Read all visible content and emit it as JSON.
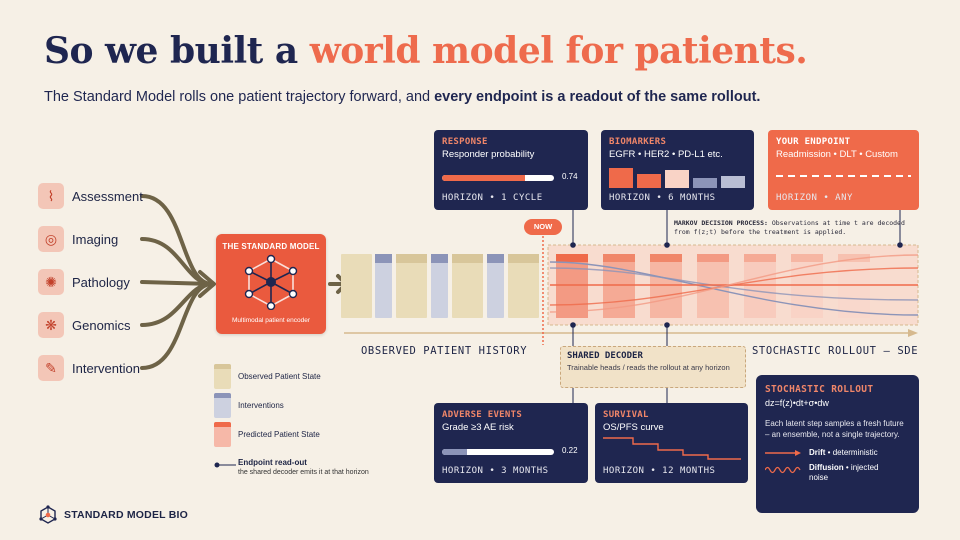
{
  "title": {
    "part1": "So we built a ",
    "accent": "world model for patients."
  },
  "subtitle": {
    "part1": "The Standard Model rolls one patient trajectory forward, and ",
    "bold": "every endpoint is a readout of the same rollout."
  },
  "sources": [
    {
      "label": "Assessment",
      "icon": "assessment-icon"
    },
    {
      "label": "Imaging",
      "icon": "imaging-icon"
    },
    {
      "label": "Pathology",
      "icon": "pathology-icon"
    },
    {
      "label": "Genomics",
      "icon": "genomics-icon"
    },
    {
      "label": "Intervention",
      "icon": "intervention-icon"
    }
  ],
  "standard_model": {
    "title": "THE STANDARD MODEL",
    "subtitle": "Multimodal patient encoder"
  },
  "now_label": "NOW",
  "cards": {
    "response": {
      "head": "RESPONSE",
      "sub": "Responder probability",
      "value": "0.74",
      "fraction": 0.74,
      "foot": "HORIZON • 1 CYCLE"
    },
    "biomarkers": {
      "head": "BIOMARKERS",
      "sub": "EGFR • HER2 • PD-L1 etc.",
      "foot": "HORIZON • 6 MONTHS"
    },
    "your_endpoint": {
      "head": "YOUR ENDPOINT",
      "sub": "Readmission • DLT • Custom",
      "foot": "HORIZON • ANY"
    },
    "adverse": {
      "head": "ADVERSE EVENTS",
      "sub": "Grade ≥3 AE risk",
      "value": "0.22",
      "fraction": 0.22,
      "foot": "HORIZON • 3 MONTHS"
    },
    "survival": {
      "head": "SURVIVAL",
      "sub": "OS/PFS curve",
      "foot": "HORIZON • 12 MONTHS"
    }
  },
  "markov_note": {
    "bold": "MARKOV DECISION PROCESS:",
    "text": " Observations at time t are decoded from f(z;t) before the treatment is applied."
  },
  "history_label": "OBSERVED PATIENT HISTORY",
  "rollout_label": "STOCHASTIC ROLLOUT — SDE",
  "shared_decoder": {
    "title": "SHARED DECODER",
    "sub": "Trainable heads / reads the rollout at any horizon"
  },
  "legend": [
    {
      "label": "Observed Patient State",
      "color": "#e9dcb8",
      "cap": "#d8c69a"
    },
    {
      "label": "Interventions",
      "color": "#cdd1e0",
      "cap": "#8c94b8"
    },
    {
      "label": "Predicted Patient State",
      "color": "#f6b8a8",
      "cap": "#ef6a4a"
    }
  ],
  "endpoint_legend": {
    "title": "Endpoint read-out",
    "sub": "the shared decoder emits it at that horizon"
  },
  "stochastic": {
    "title": "STOCHASTIC ROLLOUT",
    "equation": "dz=f(z)•dt+σ•dw",
    "desc": "Each latent step samples a fresh future – an ensemble, not a single trajectory.",
    "drift_bold": "Drift",
    "drift_text": " • deterministic",
    "diff_bold": "Diffusion",
    "diff_text": " • injected noise"
  },
  "brand": "STANDARD MODEL BIO",
  "colors": {
    "navy": "#1f2650",
    "orange": "#ef6a4a",
    "cream": "#f6f0e6",
    "olive": "#6e6347"
  }
}
